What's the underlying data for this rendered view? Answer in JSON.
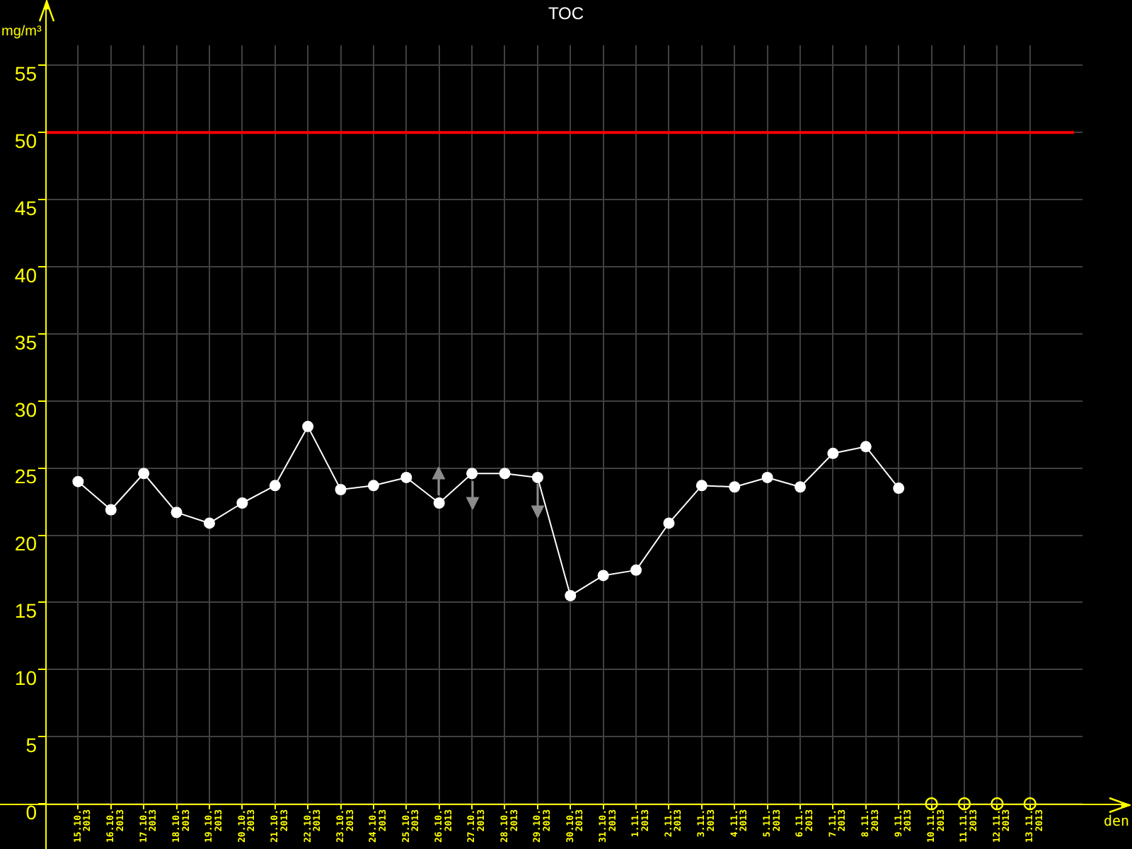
{
  "chart_data": {
    "type": "line",
    "title": "TOC",
    "xlabel": "den",
    "ylabel": "mg/m³",
    "categories": [
      "15.10. 2013",
      "16.10. 2013",
      "17.10. 2013",
      "18.10. 2013",
      "19.10. 2013",
      "20.10. 2013",
      "21.10. 2013",
      "22.10. 2013",
      "23.10. 2013",
      "24.10. 2013",
      "25.10. 2013",
      "26.10. 2013",
      "27.10. 2013",
      "28.10. 2013",
      "29.10. 2013",
      "30.10. 2013",
      "31.10. 2013",
      "1.11. 2013",
      "2.11. 2013",
      "3.11. 2013",
      "4.11. 2013",
      "5.11. 2013",
      "6.11. 2013",
      "7.11. 2013",
      "8.11. 2013",
      "9.11. 2013",
      "10.11. 2013",
      "11.11. 2013",
      "12.11. 2013",
      "13.11. 2013"
    ],
    "series": [
      {
        "type": "line",
        "color": "#ffffff",
        "values": [
          24,
          21.9,
          24.6,
          21.7,
          20.9,
          22.4,
          23.7,
          28.1,
          23.4,
          23.7,
          24.3,
          22.4,
          24.6,
          24.6,
          24.3,
          15.5,
          17,
          17.4,
          20.9,
          23.7,
          23.6,
          24.3,
          23.6,
          26.1,
          26.6,
          23.5,
          null,
          null,
          null,
          null
        ]
      },
      {
        "type": "scatter",
        "color": "#ffff00",
        "values": [
          null,
          null,
          null,
          null,
          null,
          null,
          null,
          null,
          null,
          null,
          null,
          null,
          null,
          null,
          null,
          null,
          null,
          null,
          null,
          null,
          null,
          null,
          null,
          null,
          null,
          null,
          0,
          0,
          0,
          0
        ]
      }
    ],
    "ylim": [
      0,
      56.5
    ],
    "yticks": [
      0,
      5,
      10,
      15,
      20,
      25,
      30,
      35,
      40,
      45,
      50,
      55
    ],
    "grid": true,
    "marker": "circle",
    "ref_lines": [
      {
        "axis": "y",
        "value": 50,
        "color": "#ff0000"
      }
    ]
  }
}
